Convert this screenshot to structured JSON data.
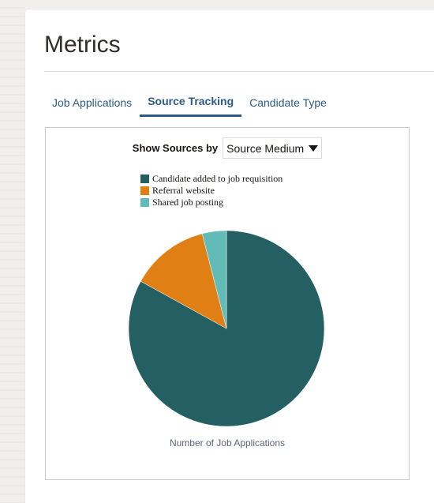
{
  "page": {
    "title": "Metrics"
  },
  "tabs": [
    {
      "label": "Job Applications"
    },
    {
      "label": "Source Tracking"
    },
    {
      "label": "Candidate Type"
    }
  ],
  "filter": {
    "label": "Show Sources by",
    "selected": "Source Medium"
  },
  "chart_data": {
    "type": "pie",
    "xlabel": "Number of Job Applications",
    "legend_position": "top",
    "categories": [
      "Candidate added to job requisition",
      "Referral website",
      "Shared job posting"
    ],
    "values": [
      83,
      13,
      4
    ],
    "colors": [
      "#245f63",
      "#df7f14",
      "#63bbb8"
    ]
  }
}
